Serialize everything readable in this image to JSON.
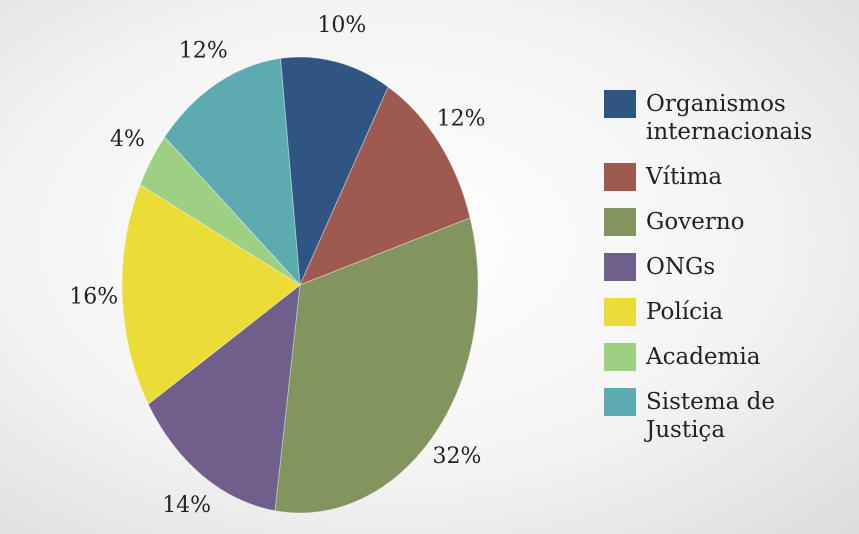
{
  "chart_data": {
    "type": "pie",
    "categories": [
      "Organismos internacionais",
      "Vítima",
      "Governo",
      "ONGs",
      "Polícia",
      "Academia",
      "Sistema de Justiça"
    ],
    "values": [
      10,
      12,
      32,
      14,
      16,
      4,
      12
    ],
    "value_labels": [
      "10%",
      "12%",
      "32%",
      "14%",
      "16%",
      "4%",
      "12%"
    ],
    "colors": [
      "#2f5582",
      "#9e5a50",
      "#83955e",
      "#6f5f8a",
      "#ebdc36",
      "#9dd082",
      "#5babb0"
    ],
    "legend": "right"
  }
}
